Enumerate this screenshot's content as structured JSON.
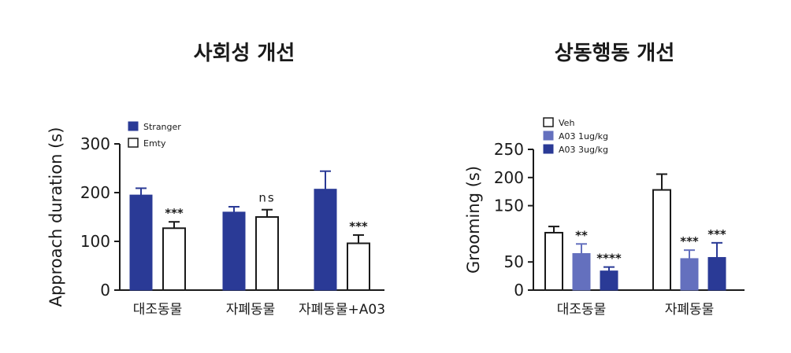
{
  "chart_data": [
    {
      "type": "bar",
      "title": "사회성 개선",
      "ylabel": "Approach duration (s)",
      "xlabel": "",
      "ylim": [
        0,
        300
      ],
      "yticks": [
        0,
        100,
        200,
        300
      ],
      "categories": [
        "대조동물",
        "자폐동물",
        "자폐동물+A03"
      ],
      "series": [
        {
          "name": "Stranger",
          "color": "#2a3a96",
          "fill": "solid",
          "values": [
            195,
            160,
            207
          ],
          "errors": [
            14,
            11,
            37
          ]
        },
        {
          "name": "Emty",
          "color": "#1a1a1a",
          "fill": "hollow",
          "values": [
            127,
            150,
            96
          ],
          "errors": [
            13,
            15,
            17
          ]
        }
      ],
      "annotations": [
        {
          "category": 0,
          "series": 1,
          "text": "***"
        },
        {
          "category": 1,
          "series": 1,
          "text": "ns"
        },
        {
          "category": 2,
          "series": 1,
          "text": "***"
        }
      ],
      "legend": "top-left",
      "grid": false
    },
    {
      "type": "bar",
      "title": "상동행동 개선",
      "ylabel": "Grooming (s)",
      "xlabel": "",
      "ylim": [
        0,
        250
      ],
      "yticks": [
        0,
        50,
        150,
        200,
        250
      ],
      "categories": [
        "대조동물",
        "자폐동물"
      ],
      "series": [
        {
          "name": "Veh",
          "color": "#1a1a1a",
          "fill": "hollow",
          "values": [
            102,
            178
          ],
          "errors": [
            11,
            28
          ]
        },
        {
          "name": "A03 1ug/kg",
          "color": "#6470be",
          "fill": "solid",
          "values": [
            65,
            56
          ],
          "errors": [
            17,
            15
          ]
        },
        {
          "name": "A03 3ug/kg",
          "color": "#2a3a96",
          "fill": "solid",
          "values": [
            34,
            58
          ],
          "errors": [
            7,
            26
          ]
        }
      ],
      "annotations": [
        {
          "category": 0,
          "series": 1,
          "text": "**"
        },
        {
          "category": 0,
          "series": 2,
          "text": "****"
        },
        {
          "category": 1,
          "series": 1,
          "text": "***"
        },
        {
          "category": 1,
          "series": 2,
          "text": "***"
        }
      ],
      "legend": "top-left",
      "grid": false
    }
  ]
}
